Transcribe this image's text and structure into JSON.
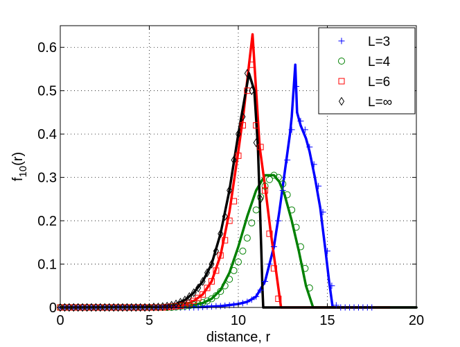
{
  "chart_data": {
    "type": "line",
    "xlabel": "distance, r",
    "ylabel_main": "f",
    "ylabel_sub": "10",
    "ylabel_tail": "(r)",
    "xlim": [
      0,
      20
    ],
    "ylim": [
      0,
      0.65
    ],
    "xticks": [
      0,
      5,
      10,
      15,
      20
    ],
    "yticks": [
      0,
      0.1,
      0.2,
      0.3,
      0.4,
      0.5,
      0.6
    ],
    "grid": "dotted",
    "legend_position": "top-right",
    "series": [
      {
        "name": "L=3",
        "color": "#0000ff",
        "marker": "plus",
        "x": [
          0,
          8,
          9,
          10,
          10.5,
          11,
          11.5,
          12,
          12.3,
          12.6,
          12.9,
          13.0,
          13.1,
          13.2,
          13.3,
          13.5,
          13.8,
          14.0,
          14.3,
          14.6,
          14.9,
          15.1,
          15.3,
          16,
          17,
          17.5
        ],
        "y": [
          0,
          0.001,
          0.003,
          0.008,
          0.013,
          0.025,
          0.06,
          0.14,
          0.22,
          0.31,
          0.4,
          0.44,
          0.5,
          0.56,
          0.45,
          0.42,
          0.39,
          0.36,
          0.3,
          0.23,
          0.13,
          0.06,
          0.0,
          0,
          0,
          0
        ],
        "marker_x": [
          0,
          0.25,
          0.5,
          0.75,
          1,
          1.25,
          1.5,
          1.75,
          2,
          2.25,
          2.5,
          2.75,
          3,
          3.25,
          3.5,
          3.75,
          4,
          4.25,
          4.5,
          4.75,
          5,
          5.25,
          5.5,
          5.75,
          6,
          6.25,
          6.5,
          6.75,
          7,
          7.25,
          7.5,
          7.75,
          8,
          8.25,
          8.5,
          8.75,
          9,
          9.25,
          9.5,
          9.75,
          10,
          10.25,
          10.5,
          10.75,
          11,
          11.25,
          11.5,
          11.75,
          12,
          12.25,
          12.5,
          12.75,
          13,
          13.25,
          13.5,
          13.75,
          14,
          14.25,
          14.5,
          14.75,
          15,
          15.25,
          15.5,
          15.75,
          16,
          16.25,
          16.5,
          16.75,
          17,
          17.25,
          17.5
        ],
        "marker_y": [
          0,
          0,
          0,
          0,
          0,
          0,
          0,
          0,
          0,
          0,
          0,
          0,
          0,
          0,
          0,
          0,
          0,
          0,
          0,
          0,
          0,
          0,
          0,
          0,
          0,
          0,
          0,
          0,
          0,
          0,
          0,
          0,
          0.001,
          0.002,
          0.002,
          0.003,
          0.003,
          0.004,
          0.005,
          0.006,
          0.008,
          0.01,
          0.013,
          0.018,
          0.025,
          0.04,
          0.06,
          0.1,
          0.14,
          0.2,
          0.27,
          0.34,
          0.41,
          0.51,
          0.43,
          0.41,
          0.37,
          0.33,
          0.28,
          0.22,
          0.13,
          0.05,
          0.005,
          0,
          0,
          0,
          0,
          0,
          0,
          0,
          0
        ]
      },
      {
        "name": "L=4",
        "color": "#008000",
        "marker": "circle",
        "x": [
          0,
          7,
          8,
          8.5,
          9,
          9.5,
          10,
          10.5,
          11,
          11.5,
          12,
          12.3,
          12.6,
          13,
          13.4,
          13.8,
          14.2,
          15,
          20
        ],
        "y": [
          0,
          0.002,
          0.01,
          0.02,
          0.04,
          0.08,
          0.14,
          0.21,
          0.27,
          0.305,
          0.305,
          0.29,
          0.26,
          0.2,
          0.13,
          0.05,
          0.0,
          0,
          0
        ],
        "marker_x": [
          0,
          0.25,
          0.5,
          0.75,
          1,
          1.25,
          1.5,
          1.75,
          2,
          2.25,
          2.5,
          2.75,
          3,
          3.25,
          3.5,
          3.75,
          4,
          4.25,
          4.5,
          4.75,
          5,
          5.25,
          5.5,
          5.75,
          6,
          6.25,
          6.5,
          6.75,
          7,
          7.25,
          7.5,
          7.75,
          8,
          8.25,
          8.5,
          8.75,
          9,
          9.25,
          9.5,
          9.75,
          10,
          10.25,
          10.5,
          10.75,
          11,
          11.25,
          11.5,
          11.75,
          12,
          12.25,
          12.5,
          12.75,
          13,
          13.25,
          13.5,
          13.75,
          14
        ],
        "marker_y": [
          0,
          0,
          0,
          0,
          0,
          0,
          0,
          0,
          0,
          0,
          0,
          0,
          0,
          0,
          0,
          0,
          0,
          0,
          0,
          0,
          0,
          0,
          0,
          0,
          0,
          0,
          0.001,
          0.002,
          0.003,
          0.004,
          0.006,
          0.008,
          0.011,
          0.015,
          0.02,
          0.027,
          0.037,
          0.05,
          0.065,
          0.085,
          0.105,
          0.13,
          0.16,
          0.195,
          0.225,
          0.255,
          0.28,
          0.295,
          0.305,
          0.3,
          0.285,
          0.26,
          0.225,
          0.185,
          0.14,
          0.09,
          0.045
        ]
      },
      {
        "name": "L=6",
        "color": "#ff0000",
        "marker": "square",
        "x": [
          0,
          6,
          7,
          7.5,
          8,
          8.5,
          9,
          9.5,
          10,
          10.3,
          10.6,
          10.8,
          11.0,
          11.2,
          11.5,
          11.8,
          12.1,
          12.4,
          13,
          18.5
        ],
        "y": [
          0,
          0.001,
          0.006,
          0.015,
          0.03,
          0.06,
          0.12,
          0.22,
          0.36,
          0.45,
          0.56,
          0.63,
          0.5,
          0.37,
          0.28,
          0.18,
          0.09,
          0.0,
          0,
          0
        ],
        "marker_x": [
          0,
          0.25,
          0.5,
          0.75,
          1,
          1.25,
          1.5,
          1.75,
          2,
          2.25,
          2.5,
          2.75,
          3,
          3.25,
          3.5,
          3.75,
          4,
          4.25,
          4.5,
          4.75,
          5,
          5.25,
          5.5,
          5.75,
          6,
          6.25,
          6.5,
          6.75,
          7,
          7.25,
          7.5,
          7.75,
          8,
          8.25,
          8.5,
          8.75,
          9,
          9.25,
          9.5,
          9.75,
          10,
          10.25,
          10.5,
          10.75,
          11,
          11.25,
          11.5,
          11.75,
          12,
          12.25
        ],
        "marker_y": [
          0,
          0,
          0,
          0,
          0,
          0,
          0,
          0,
          0,
          0,
          0,
          0,
          0,
          0,
          0,
          0,
          0,
          0,
          0,
          0,
          0,
          0,
          0,
          0,
          0.001,
          0.002,
          0.003,
          0.004,
          0.006,
          0.01,
          0.015,
          0.022,
          0.03,
          0.045,
          0.06,
          0.085,
          0.12,
          0.155,
          0.2,
          0.245,
          0.35,
          0.42,
          0.5,
          0.56,
          0.42,
          0.37,
          0.27,
          0.17,
          0.09,
          0.02
        ]
      },
      {
        "name": "L=∞",
        "color": "#000000",
        "marker": "diamond",
        "x": [
          0,
          5.5,
          6,
          6.5,
          7,
          7.5,
          8,
          8.5,
          9,
          9.5,
          10,
          10.3,
          10.6,
          10.9,
          11.1,
          11.2,
          11.3,
          11.35,
          11.4,
          20
        ],
        "y": [
          0,
          0.001,
          0.003,
          0.008,
          0.017,
          0.034,
          0.06,
          0.1,
          0.17,
          0.27,
          0.4,
          0.47,
          0.54,
          0.5,
          0.37,
          0.25,
          0.12,
          0.05,
          0.0,
          0
        ],
        "marker_x": [
          0,
          0.25,
          0.5,
          0.75,
          1,
          1.25,
          1.5,
          1.75,
          2,
          2.25,
          2.5,
          2.75,
          3,
          3.25,
          3.5,
          3.75,
          4,
          4.25,
          4.5,
          4.75,
          5,
          5.25,
          5.5,
          5.75,
          6,
          6.25,
          6.5,
          6.75,
          7,
          7.25,
          7.5,
          7.75,
          8,
          8.25,
          8.5,
          8.75,
          9,
          9.25,
          9.5,
          9.75,
          10,
          10.25,
          10.5,
          10.75,
          11,
          11.25
        ],
        "marker_y": [
          0,
          0,
          0,
          0,
          0,
          0,
          0,
          0,
          0,
          0,
          0,
          0,
          0,
          0,
          0,
          0,
          0,
          0,
          0,
          0,
          0,
          0.001,
          0.001,
          0.002,
          0.003,
          0.005,
          0.008,
          0.012,
          0.017,
          0.025,
          0.034,
          0.045,
          0.06,
          0.08,
          0.1,
          0.13,
          0.17,
          0.21,
          0.27,
          0.34,
          0.4,
          0.44,
          0.54,
          0.5,
          0.38,
          0.25
        ]
      }
    ]
  }
}
